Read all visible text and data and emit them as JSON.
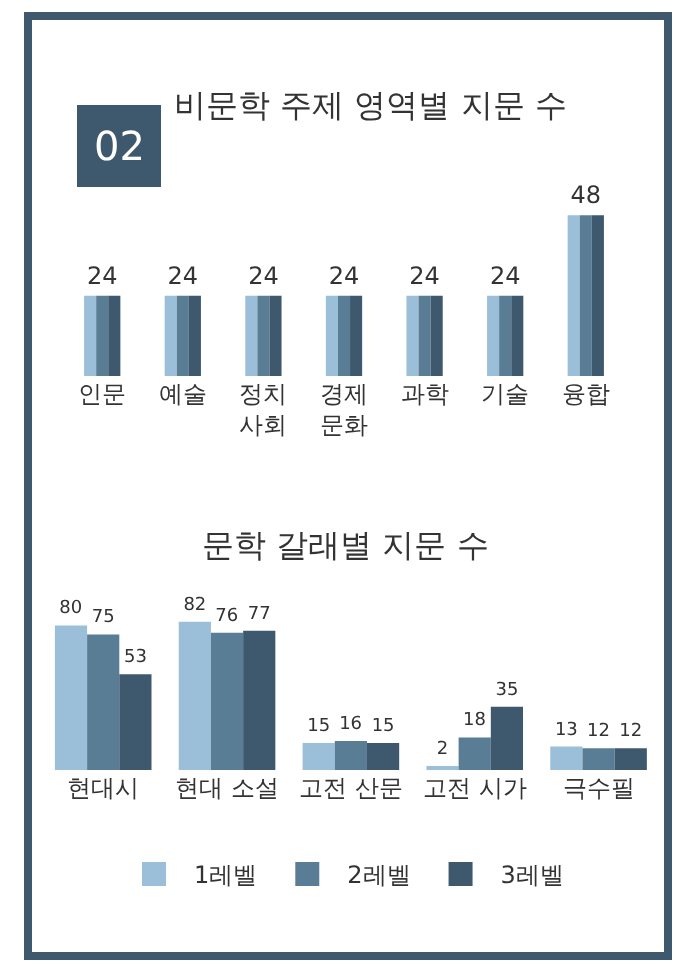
{
  "chart_data": [
    {
      "type": "bar",
      "title": "비문학 주제 영역별 지문 수",
      "annotations": [
        "02"
      ],
      "categories": [
        "인문",
        "예술",
        "정치\n사회",
        "경제\n문화",
        "과학",
        "기술",
        "융합"
      ],
      "series": [
        {
          "color": "#9bbfd8",
          "values": [
            24,
            24,
            24,
            24,
            24,
            24,
            48
          ]
        },
        {
          "color": "#5a7d96",
          "values": [
            24,
            24,
            24,
            24,
            24,
            24,
            48
          ],
          "value_labels": [
            "24",
            "24",
            "24",
            "24",
            "24",
            "24",
            "48"
          ]
        },
        {
          "color": "#3e586e",
          "values": [
            24,
            24,
            24,
            24,
            24,
            24,
            48
          ]
        }
      ],
      "legend": false
    },
    {
      "type": "bar",
      "title": "문학 갈래별 지문 수",
      "categories": [
        "현대시",
        "현대 소설",
        "고전 산문",
        "고전 시가",
        "극수필"
      ],
      "series": [
        {
          "name": "1레벨",
          "color": "#9bbfd8",
          "values": [
            80,
            82,
            15,
            2,
            13
          ]
        },
        {
          "name": "2레벨",
          "color": "#5a7d96",
          "values": [
            75,
            76,
            16,
            18,
            12
          ]
        },
        {
          "name": "3레벨",
          "color": "#3e586e",
          "values": [
            53,
            77,
            15,
            35,
            12
          ]
        }
      ],
      "data_labels": true,
      "legend": "bottom"
    }
  ]
}
